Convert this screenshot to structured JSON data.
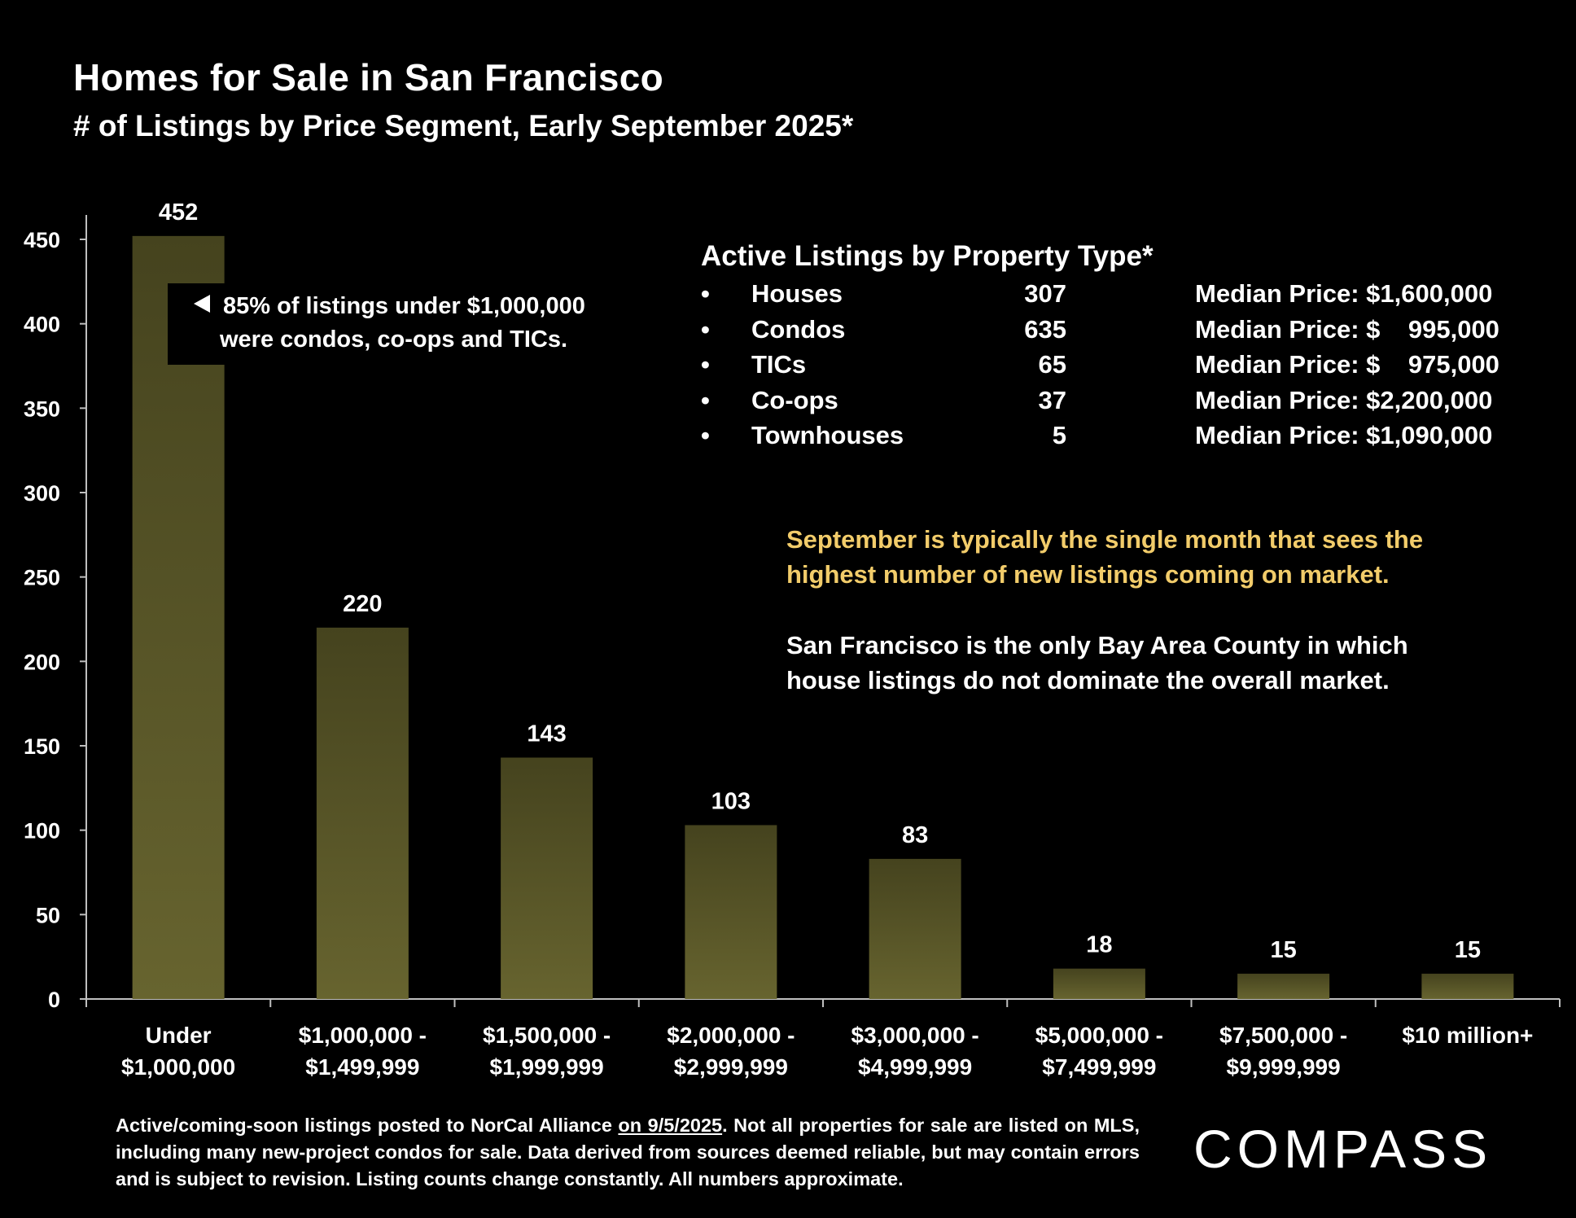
{
  "page": {
    "title": "Homes for Sale in San Francisco",
    "subtitle": "# of Listings by Price Segment, Early September 2025*"
  },
  "chart_data": {
    "type": "bar",
    "title": "Homes for Sale in San Francisco",
    "subtitle": "# of Listings by Price Segment, Early September 2025*",
    "categories": [
      [
        "Under",
        "$1,000,000"
      ],
      [
        "$1,000,000 -",
        "$1,499,999"
      ],
      [
        "$1,500,000 -",
        "$1,999,999"
      ],
      [
        "$2,000,000 -",
        "$2,999,999"
      ],
      [
        "$3,000,000 -",
        "$4,999,999"
      ],
      [
        "$5,000,000 -",
        "$7,499,999"
      ],
      [
        "$7,500,000 -",
        "$9,999,999"
      ],
      [
        "$10 million+"
      ]
    ],
    "values": [
      452,
      220,
      143,
      103,
      83,
      18,
      15,
      15
    ],
    "ylim": [
      0,
      450
    ],
    "yticks": [
      0,
      50,
      100,
      150,
      200,
      250,
      300,
      350,
      400,
      450
    ],
    "xlabel": "",
    "ylabel": "",
    "grid": false,
    "legend": "none",
    "bar_color": "#5e5b2b"
  },
  "callout": {
    "line1": "85% of listings under $1,000,000",
    "line2": "were condos, co-ops and TICs."
  },
  "property_types": {
    "title": "Active Listings by Property Type*",
    "bullet": "•",
    "rows": [
      {
        "type": "Houses",
        "count": "307",
        "price": "Median Price: $1,600,000"
      },
      {
        "type": "Condos",
        "count": "635",
        "price": "Median Price: $    995,000"
      },
      {
        "type": "TICs",
        "count": "65",
        "price": "Median Price: $    975,000"
      },
      {
        "type": "Co-ops",
        "count": "37",
        "price": "Median Price: $2,200,000"
      },
      {
        "type": "Townhouses",
        "count": "5",
        "price": "Median Price: $1,090,000"
      }
    ]
  },
  "notes": {
    "highlight_line1": "September is typically the single month that sees the",
    "highlight_line2": "highest number of new listings coming on market.",
    "highlight_color": "#f2cc6a",
    "plain_line1": "San Francisco is the only Bay Area County in which",
    "plain_line2": "house listings do not dominate the overall market."
  },
  "footnote": {
    "part1": "Active/coming-soon listings posted to NorCal Alliance ",
    "underlined": "on 9/5/2025",
    "part2": ". Not all properties for sale are listed on MLS, including many new-project condos for sale. Data derived from sources deemed reliable, but may contain errors and is subject to revision. Listing counts change constantly. All numbers approximate."
  },
  "logo": {
    "text": "COMPASS",
    "icon": "compass-logo"
  }
}
